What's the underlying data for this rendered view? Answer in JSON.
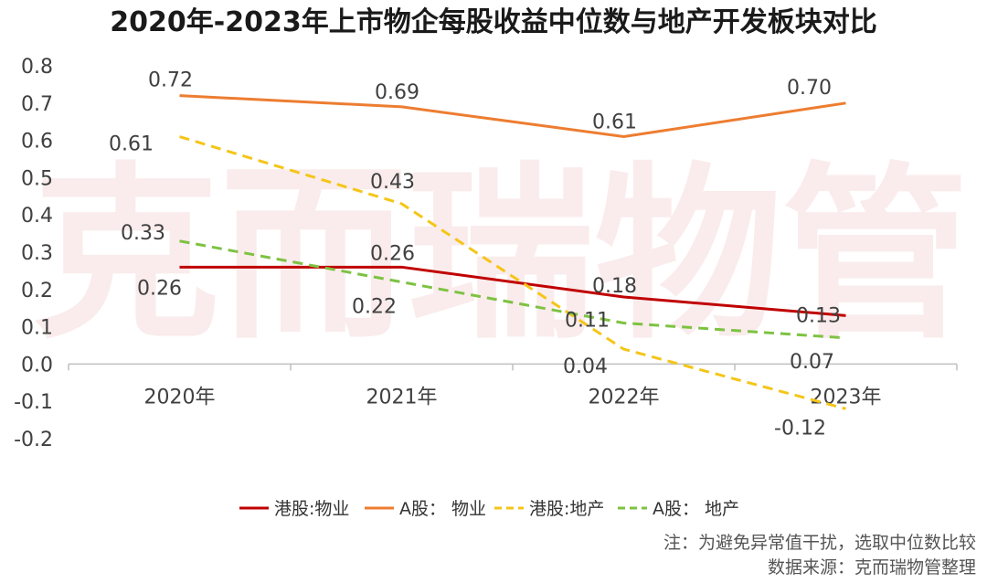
{
  "chart_data": {
    "type": "line",
    "title": "2020年-2023年上市物企每股收益中位数与地产开发板块对比",
    "categories": [
      "2020年",
      "2021年",
      "2022年",
      "2023年"
    ],
    "y_ticks": [
      "0.8",
      "0.7",
      "0.6",
      "0.5",
      "0.4",
      "0.3",
      "0.2",
      "0.1",
      "0.0",
      "-0.1",
      "-0.2"
    ],
    "ylim": [
      -0.2,
      0.8
    ],
    "grid": false,
    "legend_position": "bottom",
    "series": [
      {
        "name": "港股:物业",
        "values": [
          0.26,
          0.26,
          0.18,
          0.13
        ],
        "labels": [
          "0.26",
          "0.26",
          "0.18",
          "0.13"
        ],
        "color": "#c00000",
        "dashed": false
      },
      {
        "name": "A股： 物业",
        "values": [
          0.72,
          0.69,
          0.61,
          0.7
        ],
        "labels": [
          "0.72",
          "0.69",
          "0.61",
          "0.70"
        ],
        "color": "#ed7d31",
        "dashed": false
      },
      {
        "name": "港股:地产",
        "values": [
          0.61,
          0.43,
          0.04,
          -0.12
        ],
        "labels": [
          "0.61",
          "0.43",
          "0.04",
          "-0.12"
        ],
        "color": "#f5c518",
        "dashed": true
      },
      {
        "name": "A股： 地产",
        "values": [
          0.33,
          0.22,
          0.11,
          0.07
        ],
        "labels": [
          "0.33",
          "0.22",
          "0.11",
          "0.07"
        ],
        "color": "#7ec242",
        "dashed": true
      }
    ],
    "notes": [
      "注：为避免异常值干扰，选取中位数比较",
      "数据来源：克而瑞物管整理"
    ],
    "watermark": "克而瑞物管"
  }
}
